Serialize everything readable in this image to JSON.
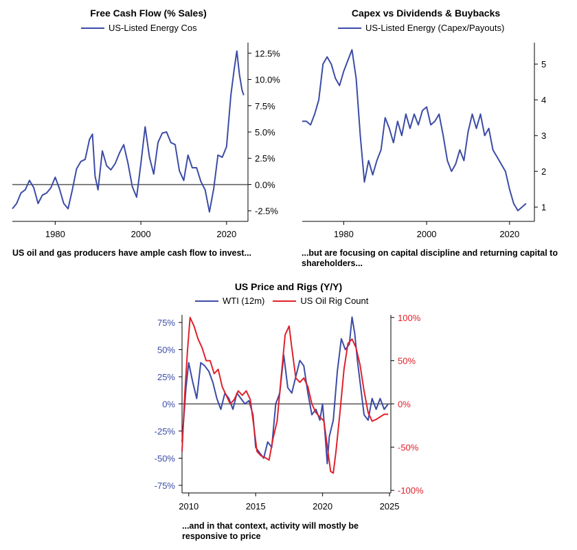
{
  "colors": {
    "blue": "#3B4BA6",
    "red": "#E0202A",
    "zero": "#555555",
    "axis": "#000000"
  },
  "chart_data": [
    {
      "type": "line",
      "title": "Free Cash Flow (% Sales)",
      "legend": [
        "US-Listed Energy Cos"
      ],
      "xlim": [
        1970,
        2025
      ],
      "ylim": [
        -3.5,
        13.5
      ],
      "x_ticks": [
        1980,
        2000,
        2020
      ],
      "x_tick_labels": [
        "1980",
        "2000",
        "2020"
      ],
      "y_ticks": [
        -2.5,
        0,
        2.5,
        5,
        7.5,
        10,
        12.5
      ],
      "y_tick_labels": [
        "-2.5%",
        "0.0%",
        "2.5%",
        "5.0%",
        "7.5%",
        "10.0%",
        "12.5%"
      ],
      "caption": "US oil and gas producers have ample cash flow to invest...",
      "series": [
        {
          "name": "US-Listed Energy Cos",
          "color": "blue",
          "x": [
            1970,
            1971,
            1972,
            1973,
            1974,
            1975,
            1976,
            1977,
            1978,
            1979,
            1980,
            1981,
            1982,
            1983,
            1984,
            1985,
            1986,
            1987,
            1988,
            1988.7,
            1989.3,
            1990,
            1991,
            1992,
            1993,
            1994,
            1995,
            1996,
            1997,
            1998,
            1999,
            2000,
            2001,
            2002,
            2003,
            2004,
            2005,
            2006,
            2007,
            2008,
            2009,
            2010,
            2011,
            2012,
            2013,
            2014,
            2015,
            2016,
            2017,
            2018,
            2019,
            2020,
            2021,
            2021.8,
            2022.4,
            2023,
            2023.6,
            2024
          ],
          "y": [
            -2.3,
            -1.8,
            -0.8,
            -0.5,
            0.4,
            -0.3,
            -1.8,
            -1.0,
            -0.8,
            -0.3,
            0.7,
            -0.4,
            -1.8,
            -2.3,
            -0.5,
            1.5,
            2.2,
            2.4,
            4.3,
            4.8,
            0.8,
            -0.5,
            3.2,
            1.8,
            1.4,
            2.0,
            3.0,
            3.8,
            2.0,
            -0.2,
            -1.2,
            2.0,
            5.5,
            2.6,
            1.0,
            4.0,
            4.9,
            5.0,
            4.0,
            3.8,
            1.3,
            0.4,
            2.8,
            1.6,
            1.6,
            0.3,
            -0.5,
            -2.6,
            -0.4,
            2.8,
            2.6,
            3.6,
            8.5,
            11.0,
            12.7,
            10.5,
            9.0,
            8.5
          ]
        }
      ]
    },
    {
      "type": "line",
      "title": "Capex vs Dividends & Buybacks",
      "legend": [
        "US-Listed Energy (Capex/Payouts)"
      ],
      "xlim": [
        1970,
        2026
      ],
      "ylim": [
        0.6,
        5.6
      ],
      "x_ticks": [
        1980,
        2000,
        2020
      ],
      "x_tick_labels": [
        "1980",
        "2000",
        "2020"
      ],
      "y_ticks": [
        1,
        2,
        3,
        4,
        5
      ],
      "y_tick_labels": [
        "1",
        "2",
        "3",
        "4",
        "5"
      ],
      "caption": "...but are focusing on capital discipline and returning capital to shareholders...",
      "series": [
        {
          "name": "US-Listed Energy (Capex/Payouts)",
          "color": "blue",
          "x": [
            1970,
            1971,
            1972,
            1973,
            1974,
            1975,
            1976,
            1977,
            1978,
            1979,
            1980,
            1981,
            1982,
            1983,
            1984,
            1985,
            1986,
            1987,
            1988,
            1989,
            1990,
            1991,
            1992,
            1993,
            1994,
            1995,
            1996,
            1997,
            1998,
            1999,
            2000,
            2001,
            2002,
            2003,
            2004,
            2005,
            2006,
            2007,
            2008,
            2009,
            2010,
            2011,
            2012,
            2013,
            2014,
            2015,
            2016,
            2017,
            2018,
            2019,
            2020,
            2021,
            2022,
            2023,
            2024
          ],
          "y": [
            3.4,
            3.4,
            3.3,
            3.6,
            4.0,
            5.0,
            5.2,
            5.0,
            4.6,
            4.4,
            4.8,
            5.1,
            5.4,
            4.6,
            3.0,
            1.7,
            2.3,
            1.9,
            2.3,
            2.6,
            3.5,
            3.2,
            2.8,
            3.4,
            3.0,
            3.6,
            3.2,
            3.6,
            3.3,
            3.7,
            3.8,
            3.3,
            3.4,
            3.6,
            3.0,
            2.3,
            2.0,
            2.2,
            2.6,
            2.3,
            3.1,
            3.6,
            3.2,
            3.6,
            3.0,
            3.2,
            2.6,
            2.4,
            2.2,
            2.0,
            1.5,
            1.1,
            0.9,
            1.0,
            1.1
          ]
        }
      ]
    },
    {
      "type": "line",
      "title": "US Price and Rigs (Y/Y)",
      "legend": [
        "WTI (12m)",
        "US Oil Rig Count"
      ],
      "xlim": [
        2009.5,
        2025.1
      ],
      "ylim_left": [
        -0.82,
        0.82
      ],
      "ylim_right": [
        -1.03,
        1.03
      ],
      "x_ticks": [
        2010,
        2015,
        2020,
        2025
      ],
      "x_tick_labels": [
        "2010",
        "2015",
        "2020",
        "2025"
      ],
      "y_ticks_left": [
        -0.75,
        -0.5,
        -0.25,
        0,
        0.25,
        0.5,
        0.75
      ],
      "y_tick_labels_left": [
        "-75%",
        "-50%",
        "-25%",
        "0%",
        "25%",
        "50%",
        "75%"
      ],
      "y_ticks_right": [
        -1.0,
        -0.5,
        0,
        0.5,
        1.0
      ],
      "y_tick_labels_right": [
        "-100%",
        "-50%",
        "0%",
        "50%",
        "100%"
      ],
      "caption": "...and in that context, activity will mostly be responsive to price",
      "series": [
        {
          "name": "WTI (12m)",
          "color": "blue",
          "axis": "left",
          "x": [
            2009.5,
            2009.8,
            2010.0,
            2010.3,
            2010.6,
            2010.9,
            2011.2,
            2011.5,
            2011.8,
            2012.1,
            2012.4,
            2012.7,
            2013.0,
            2013.3,
            2013.6,
            2013.9,
            2014.2,
            2014.5,
            2014.8,
            2015.0,
            2015.3,
            2015.6,
            2015.9,
            2016.2,
            2016.5,
            2016.8,
            2017.1,
            2017.4,
            2017.7,
            2018.0,
            2018.3,
            2018.6,
            2018.9,
            2019.2,
            2019.5,
            2019.8,
            2020.0,
            2020.2,
            2020.35,
            2020.5,
            2020.8,
            2021.1,
            2021.4,
            2021.7,
            2022.0,
            2022.2,
            2022.4,
            2022.6,
            2022.8,
            2023.1,
            2023.4,
            2023.7,
            2024.0,
            2024.3,
            2024.6,
            2024.9
          ],
          "y": [
            -0.35,
            0.15,
            0.38,
            0.2,
            0.05,
            0.38,
            0.35,
            0.3,
            0.2,
            0.05,
            -0.05,
            0.1,
            0.05,
            -0.05,
            0.1,
            0.05,
            0.0,
            0.03,
            -0.1,
            -0.4,
            -0.45,
            -0.5,
            -0.35,
            -0.4,
            0.0,
            0.1,
            0.45,
            0.15,
            0.1,
            0.25,
            0.4,
            0.35,
            0.1,
            -0.1,
            -0.05,
            -0.15,
            0.0,
            -0.3,
            -0.55,
            -0.3,
            -0.15,
            0.3,
            0.6,
            0.5,
            0.55,
            0.8,
            0.65,
            0.4,
            0.2,
            -0.1,
            -0.15,
            0.05,
            -0.05,
            0.05,
            -0.05,
            0.0
          ]
        },
        {
          "name": "US Oil Rig Count",
          "color": "red",
          "axis": "right",
          "x": [
            2009.5,
            2009.7,
            2009.9,
            2010.1,
            2010.4,
            2010.7,
            2011.0,
            2011.3,
            2011.6,
            2011.9,
            2012.2,
            2012.5,
            2012.8,
            2013.1,
            2013.4,
            2013.7,
            2014.0,
            2014.3,
            2014.6,
            2014.9,
            2015.1,
            2015.4,
            2015.7,
            2016.0,
            2016.3,
            2016.6,
            2016.9,
            2017.2,
            2017.5,
            2017.7,
            2018.0,
            2018.3,
            2018.6,
            2018.9,
            2019.2,
            2019.5,
            2019.8,
            2020.1,
            2020.4,
            2020.6,
            2020.8,
            2021.0,
            2021.3,
            2021.6,
            2021.9,
            2022.2,
            2022.5,
            2022.8,
            2023.1,
            2023.4,
            2023.7,
            2024.0,
            2024.3,
            2024.6,
            2024.9
          ],
          "y": [
            -0.55,
            0.1,
            0.6,
            1.0,
            0.9,
            0.75,
            0.65,
            0.5,
            0.5,
            0.35,
            0.4,
            0.2,
            0.1,
            0.0,
            0.05,
            0.15,
            0.1,
            0.15,
            0.05,
            -0.3,
            -0.55,
            -0.6,
            -0.62,
            -0.65,
            -0.4,
            -0.2,
            0.3,
            0.8,
            0.9,
            0.65,
            0.3,
            0.25,
            0.3,
            0.2,
            0.0,
            -0.1,
            -0.15,
            -0.2,
            -0.55,
            -0.78,
            -0.8,
            -0.55,
            -0.1,
            0.4,
            0.7,
            0.75,
            0.65,
            0.45,
            0.15,
            -0.1,
            -0.2,
            -0.18,
            -0.15,
            -0.12,
            -0.12
          ]
        }
      ]
    }
  ]
}
